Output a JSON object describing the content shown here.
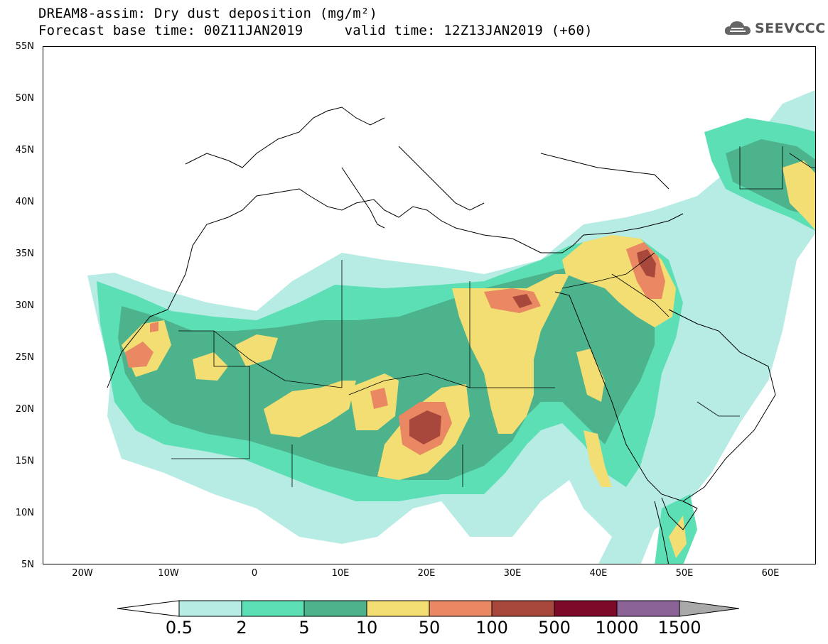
{
  "header": {
    "title": "DREAM8-assim: Dry dust deposition (mg/m²)",
    "subtitle": "Forecast base time: 00Z11JAN2019     valid time: 12Z13JAN2019 (+60)"
  },
  "logo": {
    "text": "SEEVCCC",
    "icon": "cloud-icon"
  },
  "map": {
    "lat_labels": [
      "55N",
      "50N",
      "45N",
      "40N",
      "35N",
      "30N",
      "25N",
      "20N",
      "15N",
      "10N",
      "5N"
    ],
    "lon_labels": [
      "20W",
      "10W",
      "0",
      "10E",
      "20E",
      "30E",
      "40E",
      "50E",
      "60E"
    ],
    "lon_range": [
      -25,
      65
    ],
    "lat_range": [
      5,
      55
    ]
  },
  "colorbar": {
    "labels": [
      "0.5",
      "2",
      "5",
      "10",
      "50",
      "100",
      "500",
      "1000",
      "1500"
    ],
    "colors": [
      "#b6ece4",
      "#5ddfb6",
      "#4db38d",
      "#f2de73",
      "#e98862",
      "#a8483c",
      "#7c0a28",
      "#8c6397",
      "#a9a9a9"
    ]
  }
}
